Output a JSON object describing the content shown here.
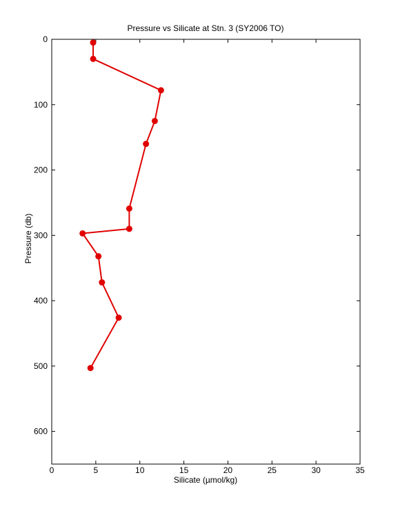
{
  "chart_data": {
    "type": "line",
    "title": "Pressure vs Silicate at Stn. 3 (SY2006 TO)",
    "x_label": "Silicate (µmol/kg)",
    "y_label": "Pressure (db)",
    "x": [
      4.7,
      4.7,
      12.4,
      11.7,
      10.7,
      8.8,
      8.8,
      3.5,
      5.3,
      5.7,
      7.6,
      4.4
    ],
    "series": [
      {
        "color": "#e00000",
        "values": [
          5,
          30,
          78,
          125,
          160,
          259,
          290,
          297,
          332,
          372,
          426,
          503
        ]
      }
    ],
    "xlim": [
      0,
      35
    ],
    "xticks": [
      0,
      5,
      10,
      15,
      20,
      25,
      30,
      35
    ],
    "ylim": [
      0,
      650
    ],
    "yticks": [
      0,
      100,
      200,
      300,
      400,
      500,
      600
    ],
    "y_inverted": true,
    "grid": false,
    "markers": true
  }
}
